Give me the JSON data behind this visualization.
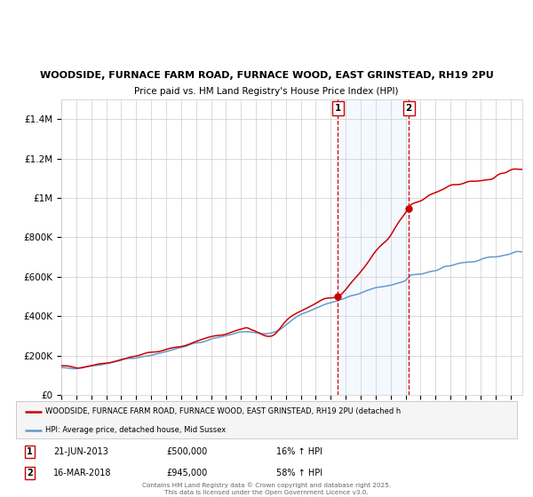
{
  "title_line1": "WOODSIDE, FURNACE FARM ROAD, FURNACE WOOD, EAST GRINSTEAD, RH19 2PU",
  "title_line2": "Price paid vs. HM Land Registry's House Price Index (HPI)",
  "ylim": [
    0,
    1500000
  ],
  "yticks": [
    0,
    200000,
    400000,
    600000,
    800000,
    1000000,
    1200000,
    1400000
  ],
  "ytick_labels": [
    "£0",
    "£200K",
    "£400K",
    "£600K",
    "£800K",
    "£1M",
    "£1.2M",
    "£1.4M"
  ],
  "xlim_start": 1995.0,
  "xlim_end": 2025.8,
  "marker1_date": 2013.47,
  "marker1_label": "1",
  "marker1_price": 500000,
  "marker1_text_date": "21-JUN-2013",
  "marker1_text_price": "£500,000",
  "marker1_text_hpi": "16% ↑ HPI",
  "marker2_date": 2018.21,
  "marker2_label": "2",
  "marker2_price": 945000,
  "marker2_text_date": "16-MAR-2018",
  "marker2_text_price": "£945,000",
  "marker2_text_hpi": "58% ↑ HPI",
  "legend_line1": "WOODSIDE, FURNACE FARM ROAD, FURNACE WOOD, EAST GRINSTEAD, RH19 2PU (detached h",
  "legend_line2": "HPI: Average price, detached house, Mid Sussex",
  "footer": "Contains HM Land Registry data © Crown copyright and database right 2025.\nThis data is licensed under the Open Government Licence v3.0.",
  "bg_color": "#ffffff",
  "plot_bg_color": "#ffffff",
  "grid_color": "#cccccc",
  "red_color": "#cc0000",
  "blue_color": "#6699cc",
  "shade_color": "#ddeeff"
}
